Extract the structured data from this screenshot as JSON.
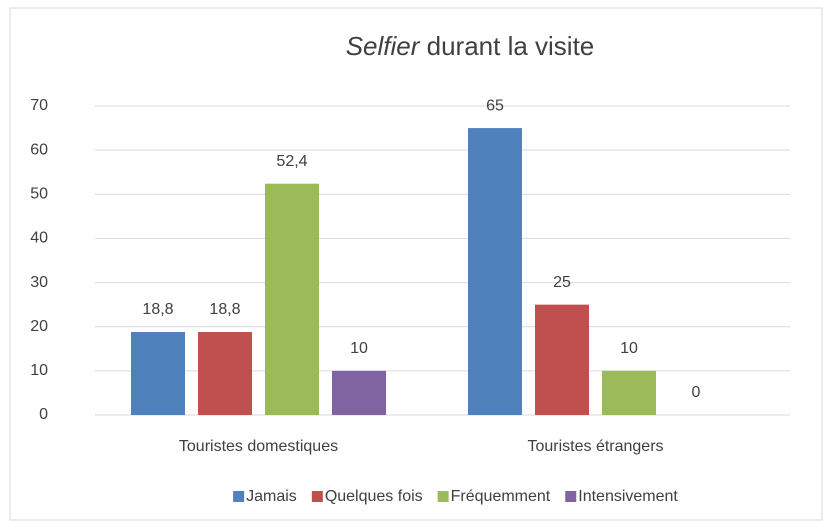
{
  "chart_data": {
    "type": "bar",
    "title": "Selfier durant la visite",
    "categories": [
      "Touristes domestiques",
      "Touristes étrangers"
    ],
    "series": [
      {
        "name": "Jamais",
        "color": "#4f81bd",
        "values": [
          18.8,
          65
        ],
        "value_labels": [
          "18,8",
          "65"
        ]
      },
      {
        "name": "Quelques fois",
        "color": "#c0504d",
        "values": [
          18.8,
          25
        ],
        "value_labels": [
          "18,8",
          "25"
        ]
      },
      {
        "name": "Fréquemment",
        "color": "#9bbb59",
        "values": [
          52.4,
          10
        ],
        "value_labels": [
          "52,4",
          "10"
        ]
      },
      {
        "name": "Intensivement",
        "color": "#8064a2",
        "values": [
          10,
          0
        ],
        "value_labels": [
          "10",
          "0"
        ]
      }
    ],
    "ylim": [
      0,
      70
    ],
    "yticks": [
      0,
      10,
      20,
      30,
      40,
      50,
      60,
      70
    ],
    "grid": true,
    "legend": "bottom"
  }
}
